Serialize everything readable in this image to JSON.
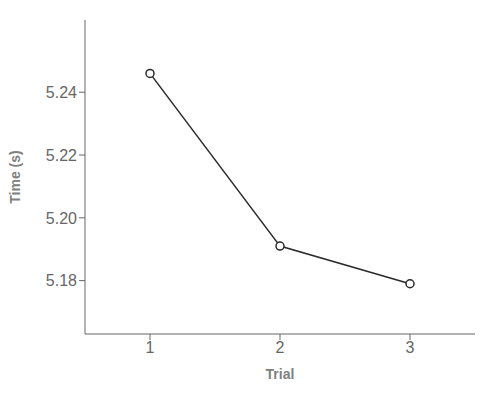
{
  "chart_data": {
    "type": "line",
    "x": [
      1,
      2,
      3
    ],
    "values": [
      5.246,
      5.191,
      5.179
    ],
    "xlabel": "Trial",
    "ylabel": "Time (s)",
    "xlim": [
      0.5,
      3.5
    ],
    "ylim": [
      5.163,
      5.263
    ],
    "xticks": [
      1,
      2,
      3
    ],
    "yticks": [
      5.18,
      {
        "value": 5.2,
        "label": "5.20"
      },
      5.22,
      5.24
    ],
    "color": "#2a2a2a",
    "marker": "circle",
    "grid": false
  }
}
